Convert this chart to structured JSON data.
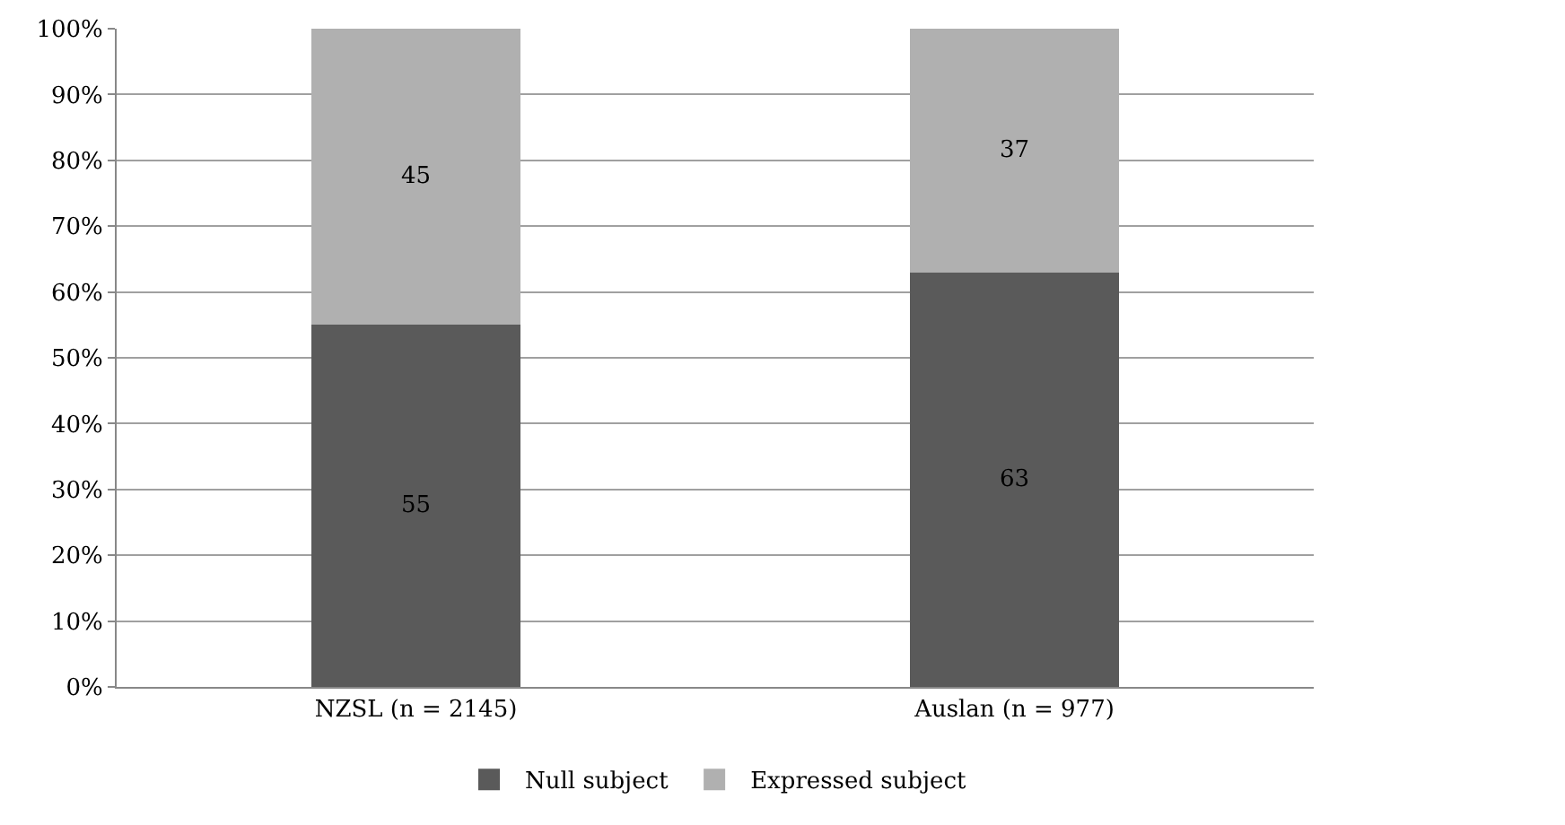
{
  "chart_data": {
    "type": "bar",
    "stacked": true,
    "categories": [
      "NZSL (n = 2145)",
      "Auslan (n = 977)"
    ],
    "series": [
      {
        "name": "Null subject",
        "color": "#5a5a5a",
        "values": [
          55,
          63
        ]
      },
      {
        "name": "Expressed subject",
        "color": "#b0b0b0",
        "values": [
          45,
          37
        ]
      }
    ],
    "ylim": [
      0,
      100
    ],
    "yticks": [
      {
        "value": 0,
        "label": "0%"
      },
      {
        "value": 10,
        "label": "10%"
      },
      {
        "value": 20,
        "label": "20%"
      },
      {
        "value": 30,
        "label": "30%"
      },
      {
        "value": 40,
        "label": "40%"
      },
      {
        "value": 50,
        "label": "50%"
      },
      {
        "value": 60,
        "label": "60%"
      },
      {
        "value": 70,
        "label": "70%"
      },
      {
        "value": 80,
        "label": "80%"
      },
      {
        "value": 90,
        "label": "90%"
      },
      {
        "value": 100,
        "label": "100%"
      }
    ],
    "grid": "y",
    "legend": "bottom",
    "data_labels": true
  }
}
